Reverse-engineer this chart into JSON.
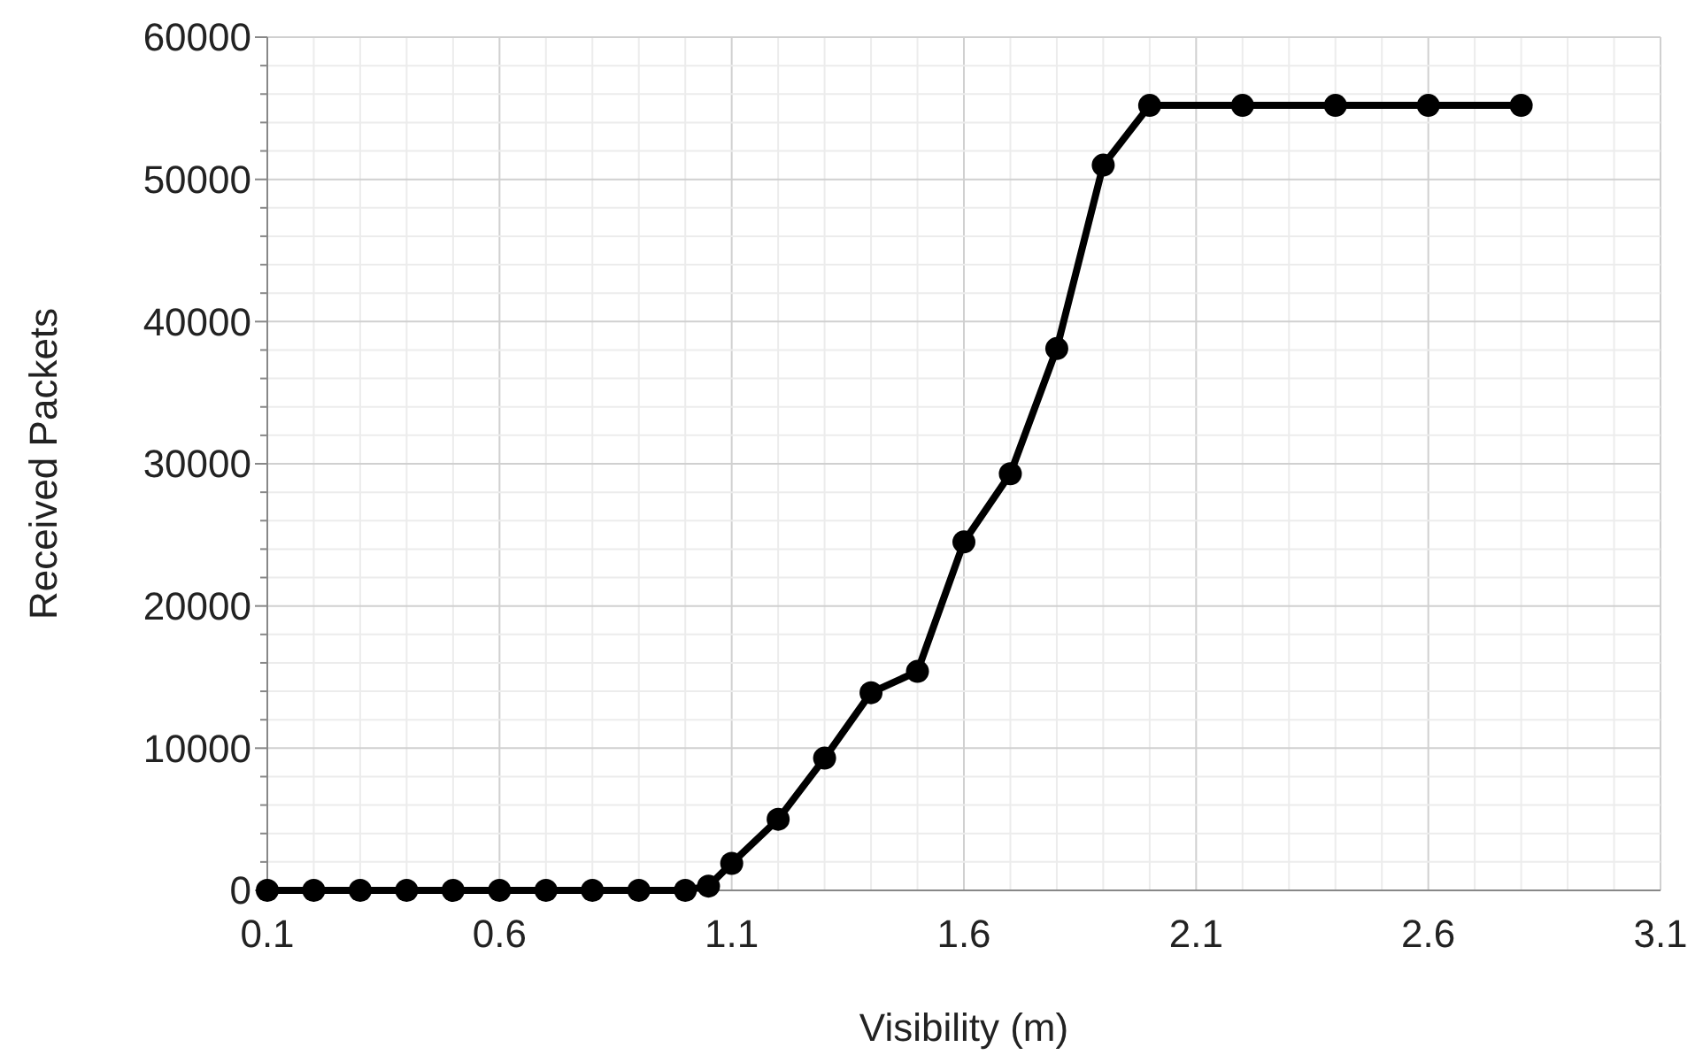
{
  "chart_data": {
    "type": "line",
    "xlabel": "Visibility (m)",
    "ylabel": "Received Packets",
    "x": [
      0.1,
      0.2,
      0.3,
      0.4,
      0.5,
      0.6,
      0.7,
      0.8,
      0.9,
      1.0,
      1.05,
      1.1,
      1.2,
      1.3,
      1.4,
      1.5,
      1.6,
      1.7,
      1.8,
      1.9,
      2.0,
      2.2,
      2.4,
      2.6,
      2.8
    ],
    "series": [
      {
        "color": "#000000",
        "values": [
          0,
          0,
          0,
          0,
          0,
          0,
          0,
          0,
          0,
          0,
          300,
          1900,
          5000,
          9300,
          13900,
          15400,
          24500,
          29300,
          38100,
          51000,
          55200,
          55200,
          55200,
          55200,
          55200
        ]
      }
    ],
    "xlim": [
      0.1,
      3.1
    ],
    "ylim": [
      0,
      60000
    ],
    "xticks": [
      0.1,
      {
        "value": 0.2,
        "label": null
      },
      {
        "value": 0.3,
        "label": null
      },
      {
        "value": 0.4,
        "label": null
      },
      {
        "value": 0.5,
        "label": null
      },
      0.6,
      {
        "value": 0.7,
        "label": null
      },
      {
        "value": 0.8,
        "label": null
      },
      {
        "value": 0.9,
        "label": null
      },
      {
        "value": 1.0,
        "label": null
      },
      1.1,
      {
        "value": 1.2,
        "label": null
      },
      {
        "value": 1.3,
        "label": null
      },
      {
        "value": 1.4,
        "label": null
      },
      {
        "value": 1.5,
        "label": null
      },
      1.6,
      {
        "value": 1.7,
        "label": null
      },
      {
        "value": 1.8,
        "label": null
      },
      {
        "value": 1.9,
        "label": null
      },
      {
        "value": 2.0,
        "label": null
      },
      2.1,
      {
        "value": 2.2,
        "label": null
      },
      {
        "value": 2.3,
        "label": null
      },
      {
        "value": 2.4,
        "label": null
      },
      {
        "value": 2.5,
        "label": null
      },
      2.6,
      {
        "value": 2.7,
        "label": null
      },
      {
        "value": 2.8,
        "label": null
      },
      {
        "value": 2.9,
        "label": null
      },
      {
        "value": 3.0,
        "label": null
      },
      3.1
    ],
    "yticks": [
      0,
      {
        "value": 2000,
        "label": null
      },
      {
        "value": 4000,
        "label": null
      },
      {
        "value": 6000,
        "label": null
      },
      {
        "value": 8000,
        "label": null
      },
      10000,
      {
        "value": 12000,
        "label": null
      },
      {
        "value": 14000,
        "label": null
      },
      {
        "value": 16000,
        "label": null
      },
      {
        "value": 18000,
        "label": null
      },
      20000,
      {
        "value": 22000,
        "label": null
      },
      {
        "value": 24000,
        "label": null
      },
      {
        "value": 26000,
        "label": null
      },
      {
        "value": 28000,
        "label": null
      },
      30000,
      {
        "value": 32000,
        "label": null
      },
      {
        "value": 34000,
        "label": null
      },
      {
        "value": 36000,
        "label": null
      },
      {
        "value": 38000,
        "label": null
      },
      40000,
      {
        "value": 42000,
        "label": null
      },
      {
        "value": 44000,
        "label": null
      },
      {
        "value": 46000,
        "label": null
      },
      {
        "value": 48000,
        "label": null
      },
      50000,
      {
        "value": 52000,
        "label": null
      },
      {
        "value": 54000,
        "label": null
      },
      {
        "value": 56000,
        "label": null
      },
      {
        "value": 58000,
        "label": null
      },
      60000
    ],
    "grid": true,
    "marker": "circle",
    "line_style": "solid"
  }
}
